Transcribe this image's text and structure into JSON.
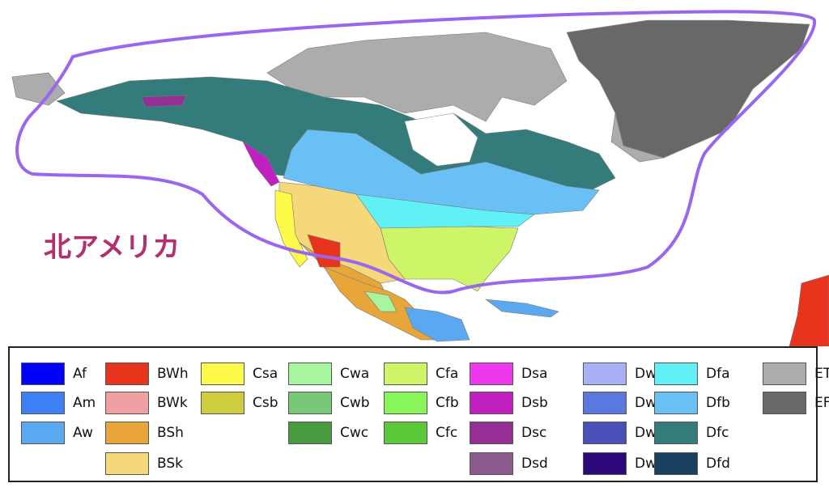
{
  "map": {
    "label": "北アメリカ"
  },
  "legend": {
    "columns": [
      [
        {
          "code": "Af",
          "color": "#0000fe"
        },
        {
          "code": "Am",
          "color": "#3d7ff5"
        },
        {
          "code": "Aw",
          "color": "#5aa8f0"
        }
      ],
      [
        {
          "code": "BWh",
          "color": "#e8341c"
        },
        {
          "code": "BWk",
          "color": "#f0a0a0"
        },
        {
          "code": "BSh",
          "color": "#e8a53a"
        },
        {
          "code": "BSk",
          "color": "#f5d87a"
        }
      ],
      [
        {
          "code": "Csa",
          "color": "#fdfa4a"
        },
        {
          "code": "Csb",
          "color": "#cfcc40"
        }
      ],
      [
        {
          "code": "Cwa",
          "color": "#a8f5a0"
        },
        {
          "code": "Cwb",
          "color": "#78c878"
        },
        {
          "code": "Cwc",
          "color": "#4a9a40"
        }
      ],
      [
        {
          "code": "Cfa",
          "color": "#cef568"
        },
        {
          "code": "Cfb",
          "color": "#88f55a"
        },
        {
          "code": "Cfc",
          "color": "#5cc83a"
        }
      ],
      [
        {
          "code": "Dsa",
          "color": "#ee38ee"
        },
        {
          "code": "Dsb",
          "color": "#c020c0"
        },
        {
          "code": "Dsc",
          "color": "#943094"
        },
        {
          "code": "Dsd",
          "color": "#8c5a8c"
        }
      ],
      [
        {
          "code": "Dwa",
          "color": "#aab0f5"
        },
        {
          "code": "Dwb",
          "color": "#5a78e0"
        },
        {
          "code": "Dwc",
          "color": "#4a50b8"
        },
        {
          "code": "Dwd",
          "color": "#2c087a"
        }
      ],
      [
        {
          "code": "Dfa",
          "color": "#60f0f5"
        },
        {
          "code": "Dfb",
          "color": "#68c0f5"
        },
        {
          "code": "Dfc",
          "color": "#347c7c"
        },
        {
          "code": "Dfd",
          "color": "#1a4060"
        }
      ],
      [
        {
          "code": "ET",
          "color": "#acacac"
        },
        {
          "code": "EF",
          "color": "#686868"
        }
      ]
    ]
  }
}
